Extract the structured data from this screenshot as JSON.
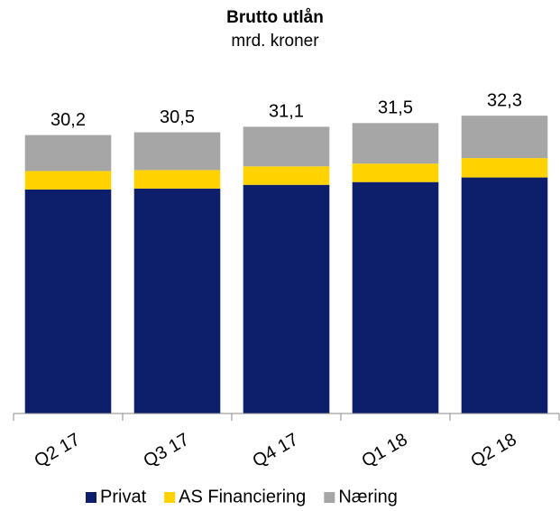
{
  "chart_data": {
    "type": "stacked_bar",
    "title": "Brutto utlån",
    "subtitle": "mrd. kroner",
    "categories": [
      "Q2 17",
      "Q3 17",
      "Q4 17",
      "Q1 18",
      "Q2 18"
    ],
    "series": [
      {
        "name": "Privat",
        "color": "#0d1f6b",
        "values": [
          24.3,
          24.4,
          24.8,
          25.1,
          25.6
        ]
      },
      {
        "name": "AS Financiering",
        "color": "#ffd200",
        "values": [
          2.0,
          2.0,
          2.0,
          2.0,
          2.1
        ]
      },
      {
        "name": "Næring",
        "color": "#a6a6a6",
        "values": [
          3.9,
          4.1,
          4.3,
          4.4,
          4.6
        ]
      }
    ],
    "totals": [
      30.2,
      30.5,
      31.1,
      31.5,
      32.3
    ],
    "total_labels": [
      "30,2",
      "30,5",
      "31,1",
      "31,5",
      "32,3"
    ],
    "ylim": [
      0,
      33
    ],
    "legend": "bottom"
  }
}
